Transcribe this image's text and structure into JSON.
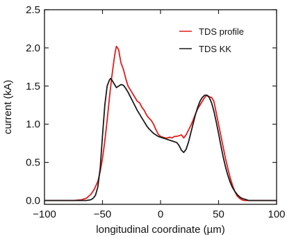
{
  "chart_data": {
    "type": "line",
    "xlabel": "longitudinal coordinate (µm)",
    "ylabel": "current (kA)",
    "xlim": [
      -100,
      100
    ],
    "ylim": [
      -0.05,
      2.5
    ],
    "xticks": [
      -100,
      -50,
      0,
      50,
      100
    ],
    "xtick_labels": [
      "−100",
      "−50",
      "0",
      "50",
      "100"
    ],
    "yticks": [
      0.0,
      0.5,
      1.0,
      1.5,
      2.0,
      2.5
    ],
    "ytick_labels": [
      "0.0",
      "0.5",
      "1.0",
      "1.5",
      "2.0",
      "2.5"
    ],
    "grid": false,
    "legend_position": "top-right",
    "series": [
      {
        "name": "TDS profile",
        "color": "#e41a1c",
        "x": [
          -100,
          -75,
          -68,
          -64,
          -60,
          -57,
          -54,
          -52,
          -50,
          -48,
          -46,
          -44,
          -42,
          -40,
          -39,
          -38,
          -37,
          -36,
          -35,
          -34,
          -32,
          -30,
          -28,
          -26,
          -24,
          -22,
          -20,
          -18,
          -16,
          -14,
          -12,
          -10,
          -8,
          -6,
          -4,
          -2,
          0,
          2,
          4,
          6,
          8,
          10,
          12,
          14,
          16,
          18,
          20,
          22,
          24,
          26,
          28,
          30,
          32,
          34,
          36,
          38,
          40,
          42,
          44,
          46,
          48,
          50,
          52,
          54,
          56,
          58,
          60,
          62,
          64,
          66,
          68,
          70,
          72,
          74,
          76,
          78,
          80,
          100
        ],
        "y": [
          0.0,
          0.0,
          0.01,
          0.03,
          0.08,
          0.15,
          0.25,
          0.38,
          0.55,
          0.78,
          1.05,
          1.35,
          1.62,
          1.85,
          1.95,
          2.02,
          2.0,
          1.97,
          1.88,
          1.8,
          1.72,
          1.6,
          1.5,
          1.45,
          1.4,
          1.35,
          1.3,
          1.28,
          1.22,
          1.18,
          1.12,
          1.08,
          1.05,
          1.0,
          0.93,
          0.87,
          0.84,
          0.83,
          0.82,
          0.82,
          0.83,
          0.82,
          0.84,
          0.84,
          0.85,
          0.86,
          0.82,
          0.86,
          0.92,
          0.98,
          1.05,
          1.13,
          1.2,
          1.25,
          1.3,
          1.35,
          1.38,
          1.36,
          1.35,
          1.3,
          1.15,
          1.0,
          0.85,
          0.7,
          0.55,
          0.42,
          0.3,
          0.2,
          0.12,
          0.06,
          0.03,
          0.01,
          0.0,
          0.0,
          0.0,
          0.0,
          0.0,
          0.0
        ]
      },
      {
        "name": "TDS KK",
        "color": "#1a1a1a",
        "x": [
          -100,
          -70,
          -64,
          -60,
          -58,
          -56,
          -54,
          -52,
          -50,
          -48,
          -46,
          -44,
          -43,
          -42,
          -40,
          -38,
          -36,
          -34,
          -32,
          -30,
          -28,
          -26,
          -24,
          -22,
          -20,
          -18,
          -16,
          -14,
          -12,
          -10,
          -8,
          -6,
          -4,
          -2,
          0,
          2,
          4,
          6,
          8,
          10,
          12,
          14,
          16,
          18,
          20,
          22,
          24,
          26,
          28,
          30,
          32,
          34,
          36,
          38,
          40,
          42,
          44,
          46,
          48,
          50,
          52,
          54,
          56,
          58,
          60,
          62,
          64,
          66,
          68,
          70,
          72,
          74,
          76,
          78,
          80,
          100
        ],
        "y": [
          0.0,
          0.0,
          0.0,
          0.01,
          0.03,
          0.07,
          0.18,
          0.42,
          0.85,
          1.25,
          1.5,
          1.58,
          1.6,
          1.58,
          1.53,
          1.48,
          1.5,
          1.52,
          1.51,
          1.47,
          1.42,
          1.36,
          1.3,
          1.24,
          1.18,
          1.13,
          1.08,
          1.03,
          0.98,
          0.94,
          0.91,
          0.88,
          0.86,
          0.84,
          0.83,
          0.82,
          0.81,
          0.8,
          0.79,
          0.78,
          0.77,
          0.76,
          0.72,
          0.66,
          0.63,
          0.67,
          0.76,
          0.88,
          1.0,
          1.12,
          1.22,
          1.3,
          1.35,
          1.38,
          1.38,
          1.35,
          1.28,
          1.17,
          1.03,
          0.88,
          0.72,
          0.57,
          0.44,
          0.33,
          0.24,
          0.17,
          0.12,
          0.08,
          0.05,
          0.03,
          0.02,
          0.01,
          0.0,
          0.0,
          0.0,
          0.0
        ]
      }
    ]
  }
}
